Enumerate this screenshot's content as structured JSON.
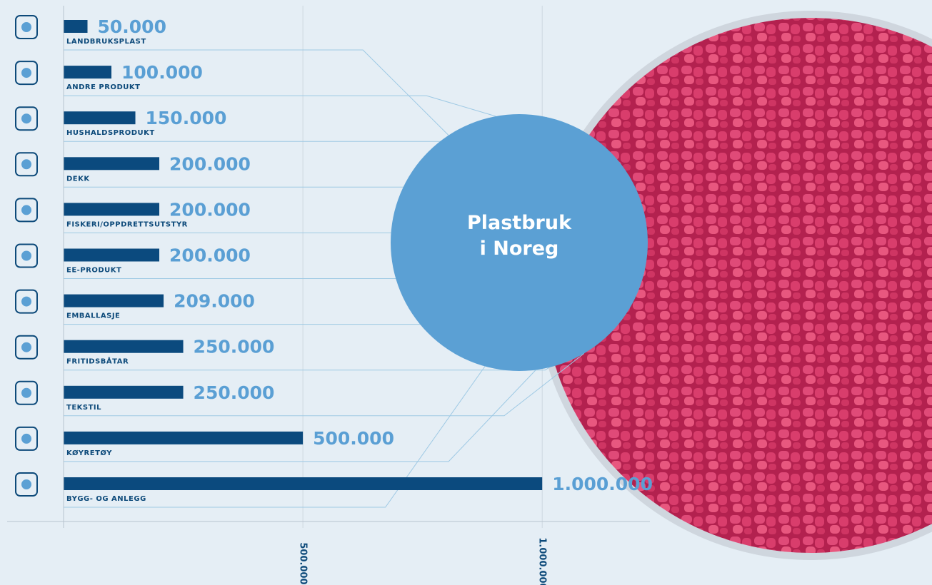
{
  "chart_data": {
    "type": "bar",
    "orientation": "horizontal",
    "title": "Plastbruk i Noreg",
    "categories": [
      "LANDBRUKSPLAST",
      "ANDRE PRODUKT",
      "HUSHALDSPRODUKT",
      "DEKK",
      "FISKERI/OPPDRETTSUTSTYR",
      "EE-PRODUKT",
      "EMBALLASJE",
      "FRITIDSBÅTAR",
      "TEKSTIL",
      "KØYRETØY",
      "BYGG- OG ANLEGG"
    ],
    "values": [
      50000,
      100000,
      150000,
      200000,
      200000,
      200000,
      209000,
      250000,
      250000,
      500000,
      1000000
    ],
    "value_labels": [
      "50.000",
      "100.000",
      "150.000",
      "200.000",
      "200.000",
      "200.000",
      "209.000",
      "250.000",
      "250.000",
      "500.000",
      "1.000.000"
    ],
    "color": "#0b4a7e",
    "xlim": [
      0,
      1225000
    ],
    "xticks": [
      {
        "value": 500000,
        "label": "500.000"
      },
      {
        "value": 1000000,
        "label": "1.000.000"
      }
    ],
    "grid": true
  }
}
